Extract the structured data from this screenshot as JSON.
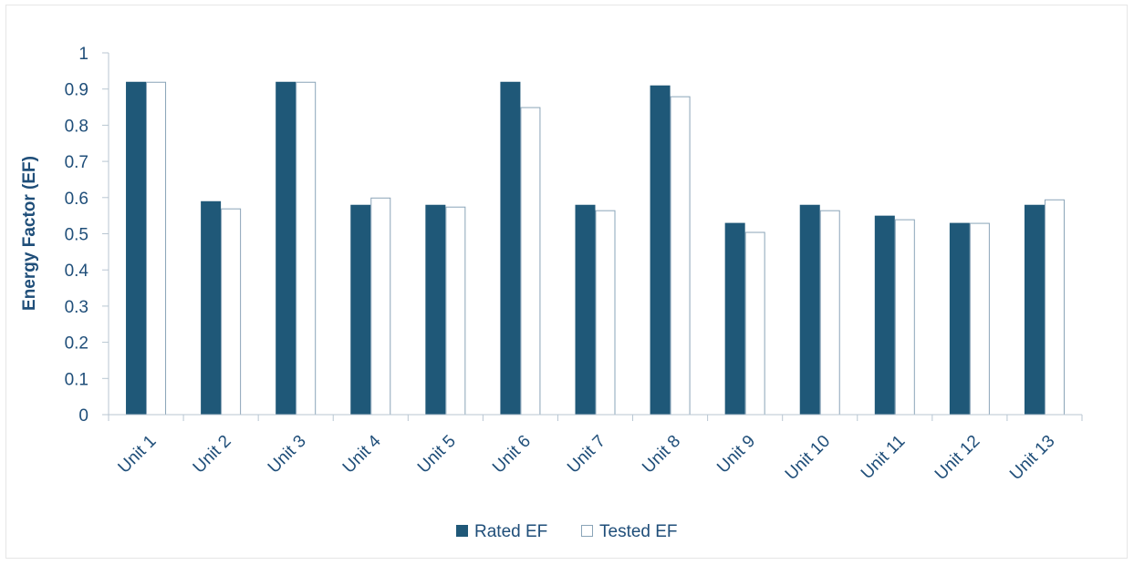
{
  "chart_data": {
    "type": "bar",
    "title": "",
    "xlabel": "",
    "ylabel": "Energy Factor (EF)",
    "ylim": [
      0,
      1
    ],
    "yticks": [
      "0",
      "0.1",
      "0.2",
      "0.3",
      "0.4",
      "0.5",
      "0.6",
      "0.7",
      "0.8",
      "0.9",
      "1"
    ],
    "categories": [
      "Unit 1",
      "Unit 2",
      "Unit 3",
      "Unit 4",
      "Unit 5",
      "Unit 6",
      "Unit 7",
      "Unit 8",
      "Unit 9",
      "Unit 10",
      "Unit 11",
      "Unit 12",
      "Unit 13"
    ],
    "series": [
      {
        "name": "Rated EF",
        "values": [
          0.92,
          0.59,
          0.92,
          0.58,
          0.58,
          0.92,
          0.58,
          0.91,
          0.53,
          0.58,
          0.55,
          0.53,
          0.58
        ]
      },
      {
        "name": "Tested EF",
        "values": [
          0.92,
          0.57,
          0.92,
          0.6,
          0.575,
          0.85,
          0.565,
          0.88,
          0.505,
          0.565,
          0.54,
          0.53,
          0.595
        ]
      }
    ],
    "grid": false,
    "legend_position": "bottom",
    "colors": {
      "rated_fill": "#1f5878",
      "tested_fill": "#ffffff",
      "tested_stroke": "#8aa4b8",
      "axis": "#b8c6d2",
      "text": "#1f4e79"
    }
  }
}
